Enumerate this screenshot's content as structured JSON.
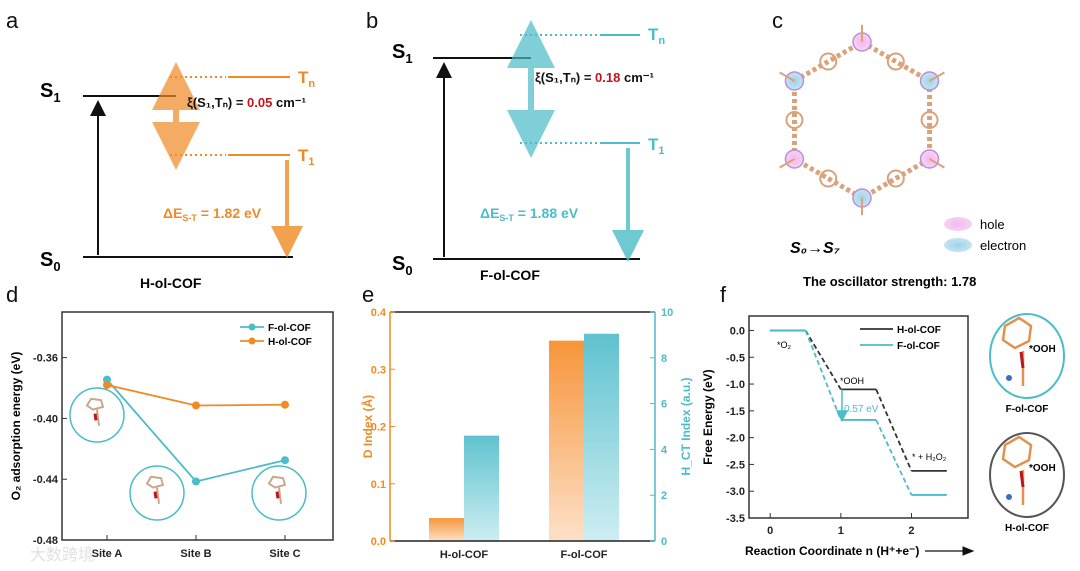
{
  "colors": {
    "orange": "#f08a24",
    "cyan": "#4bbcc8",
    "black": "#111111",
    "red": "#c0141c"
  },
  "panel_a": {
    "letter": "a",
    "s1": "S",
    "s1_sub": "1",
    "s0": "S",
    "s0_sub": "0",
    "tn": "T",
    "tn_sub": "n",
    "t1": "T",
    "t1_sub": "1",
    "xi_prefix": "ξ(S₁,Tₙ) = ",
    "xi_value": "0.05",
    "xi_unit": " cm⁻¹",
    "de_prefix": "ΔE",
    "de_sub": "S-T",
    "de_value": " = 1.82 eV",
    "name": "H-ol-COF"
  },
  "panel_b": {
    "letter": "b",
    "s1": "S",
    "s1_sub": "1",
    "s0": "S",
    "s0_sub": "0",
    "tn": "T",
    "tn_sub": "n",
    "t1": "T",
    "t1_sub": "1",
    "xi_prefix": "ξ(S₁,Tₙ) = ",
    "xi_value": "0.18",
    "xi_unit": " cm⁻¹",
    "de_prefix": "ΔE",
    "de_sub": "S-T",
    "de_value": " = 1.88 eV",
    "name": "F-ol-COF"
  },
  "panel_c": {
    "letter": "c",
    "legend_hole": "hole",
    "legend_electron": "electron",
    "transition": "S₀→S₇",
    "oscillator": "The oscillator strength: 1.78"
  },
  "panel_d_letter": "d",
  "panel_e_letter": "e",
  "panel_f_letter": "f",
  "watermark": "大数跨境",
  "chart_data": [
    {
      "id": "d",
      "type": "line",
      "categories": [
        "Site A",
        "Site B",
        "Site C"
      ],
      "ylabel": "O₂ adsorption energy (eV)",
      "ylim": [
        -0.48,
        -0.33
      ],
      "yticks": [
        "-0.36",
        "-0.40",
        "-0.44",
        "-0.48"
      ],
      "ytick_values": [
        -0.36,
        -0.4,
        -0.44,
        -0.48
      ],
      "legend": "top-right",
      "series": [
        {
          "name": "F-ol-COF",
          "color": "#4bbcc8",
          "values": [
            -0.3745,
            -0.4415,
            -0.4275
          ]
        },
        {
          "name": "H-ol-COF",
          "color": "#f08a24",
          "values": [
            -0.378,
            -0.3915,
            -0.391
          ]
        }
      ]
    },
    {
      "id": "e",
      "type": "bar",
      "categories": [
        "H-ol-COF",
        "F-ol-COF"
      ],
      "ylabel_left": "D Index (Å)",
      "ylim_left": [
        0,
        0.4
      ],
      "yticks_left": [
        "0.0",
        "0.1",
        "0.2",
        "0.3",
        "0.4"
      ],
      "ylabel_right": "H_CT Index (a.u.)",
      "ylim_right": [
        0,
        10
      ],
      "yticks_right": [
        "0",
        "2",
        "4",
        "6",
        "8",
        "10"
      ],
      "series": [
        {
          "name": "D Index",
          "axis": "left",
          "color": "#f7953a",
          "values": [
            0.04,
            0.35
          ]
        },
        {
          "name": "H_CT Index",
          "axis": "right",
          "color": "#5fc2cf",
          "values": [
            4.6,
            9.05
          ]
        }
      ]
    },
    {
      "id": "f",
      "type": "line",
      "xlabel": "Reaction Coordinate n (H⁺+e⁻)",
      "ylabel": "Free Energy (eV)",
      "ylim": [
        -3.5,
        0.27
      ],
      "xlim": [
        -0.3,
        2.8
      ],
      "yticks": [
        "0.0",
        "-0.5",
        "-1.0",
        "-1.5",
        "-2.0",
        "-2.5",
        "-3.0",
        "-3.5"
      ],
      "ytick_values": [
        0,
        -0.5,
        -1,
        -1.5,
        -2,
        -2.5,
        -3,
        -3.5
      ],
      "xticks": [
        "0",
        "1",
        "2"
      ],
      "legend": "top-right",
      "series": [
        {
          "name": "H-ol-COF",
          "color": "#333333",
          "values": [
            0,
            -1.1,
            -2.62
          ]
        },
        {
          "name": "F-ol-COF",
          "color": "#4bbcc8",
          "values": [
            0,
            -1.67,
            -3.07
          ]
        }
      ],
      "annotations": [
        "*O₂",
        "*OOH",
        "* + H₂O₂",
        "0.57 eV"
      ],
      "insets": [
        {
          "label": "F-ol-COF",
          "species": "*OOH"
        },
        {
          "label": "H-ol-COF",
          "species": "*OOH"
        }
      ]
    }
  ]
}
